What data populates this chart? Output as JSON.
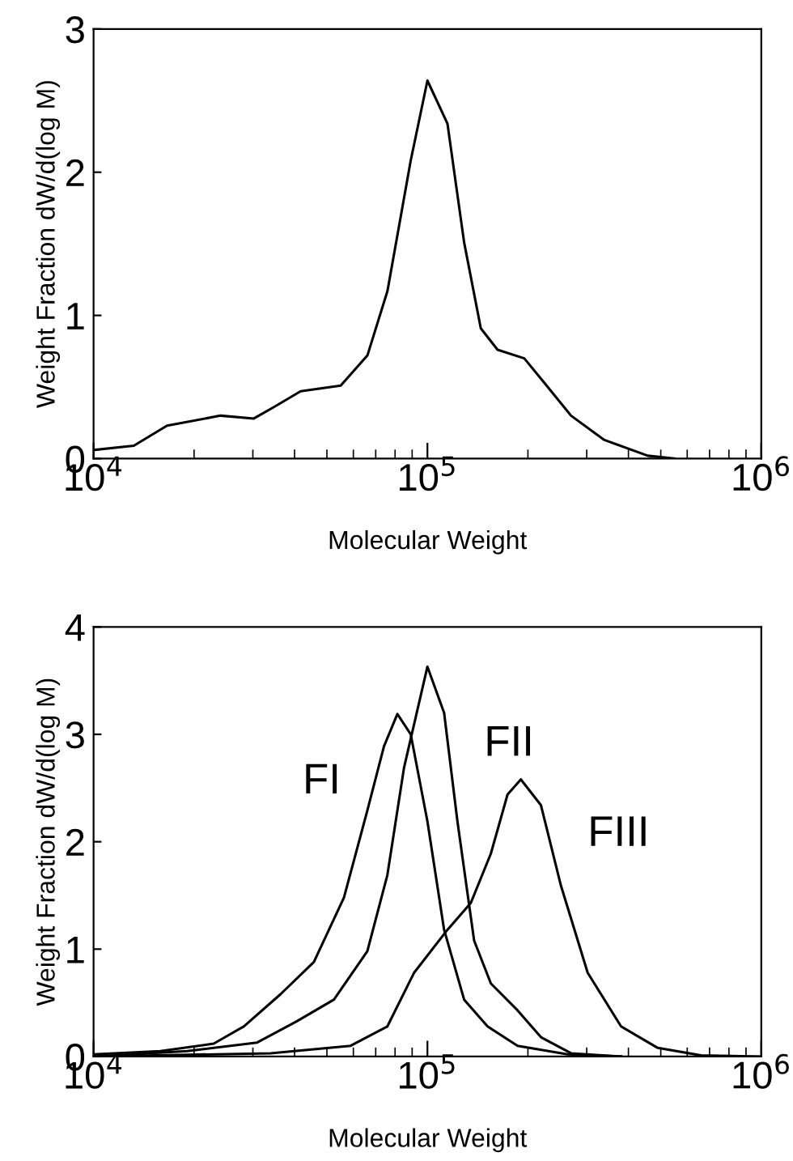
{
  "chart_data": [
    {
      "type": "line",
      "xlabel": "Molecular Weight",
      "ylabel": "Weight Fraction dW/d(log M)",
      "log": "x",
      "xlim": [
        10000,
        1000000
      ],
      "xticks": [
        {
          "value": 10000,
          "label": "10$^{4}$"
        },
        {
          "value": 100000,
          "label": "10$^{5}$"
        },
        {
          "value": 1000000,
          "label": "10$^{6}$"
        }
      ],
      "ylim": [
        0,
        3
      ],
      "yticks": [
        0,
        1,
        2,
        3
      ],
      "grid": false,
      "legend": false,
      "series": [
        {
          "color": "#000000",
          "x": [
            10000,
            13200,
            16600,
            24000,
            30200,
            34700,
            41700,
            55000,
            66100,
            75900,
            89100,
            100000,
            114800,
            128800,
            144500,
            162200,
            195000,
            223900,
            269200,
            338800,
            457100,
            549500
          ],
          "values": [
            0.06,
            0.09,
            0.23,
            0.3,
            0.28,
            0.36,
            0.47,
            0.51,
            0.72,
            1.17,
            2.08,
            2.64,
            2.34,
            1.51,
            0.91,
            0.76,
            0.7,
            0.53,
            0.3,
            0.13,
            0.02,
            0
          ]
        }
      ]
    },
    {
      "type": "line",
      "xlabel": "Molecular Weight",
      "ylabel": "Weight Fraction dW/d(log M)",
      "log": "x",
      "xlim": [
        10000,
        1000000
      ],
      "xticks": [
        {
          "value": 10000,
          "label": "10$^{4}$"
        },
        {
          "value": 100000,
          "label": "10$^{5}$"
        },
        {
          "value": 1000000,
          "label": "10$^{6}$"
        }
      ],
      "ylim": [
        0,
        4
      ],
      "yticks": [
        0,
        1,
        2,
        3,
        4
      ],
      "grid": false,
      "legend": false,
      "series": [
        {
          "name": "FI",
          "color": "#000000",
          "x": [
            10000,
            15850,
            22910,
            28180,
            36310,
            45710,
            56230,
            66070,
            74130,
            81280,
            89130,
            100000,
            112200,
            128800,
            151400,
            186200,
            263000,
            380200
          ],
          "values": [
            0.02,
            0.05,
            0.12,
            0.28,
            0.58,
            0.88,
            1.48,
            2.29,
            2.89,
            3.19,
            3.0,
            2.19,
            1.18,
            0.53,
            0.28,
            0.1,
            0.02,
            0
          ]
        },
        {
          "name": "FII",
          "color": "#000000",
          "x": [
            10000,
            19050,
            30900,
            40740,
            52480,
            66070,
            75860,
            85110,
            100000,
            112200,
            123000,
            138000,
            154900,
            186200,
            218800,
            269200,
            380200
          ],
          "values": [
            0,
            0.05,
            0.13,
            0.33,
            0.53,
            0.98,
            1.69,
            2.69,
            3.63,
            3.2,
            2.19,
            1.08,
            0.68,
            0.43,
            0.18,
            0.03,
            0
          ]
        },
        {
          "name": "FIII",
          "color": "#000000",
          "x": [
            10000,
            33880,
            58880,
            75860,
            91200,
            114800,
            134900,
            154900,
            173800,
            190500,
            218800,
            251200,
            302000,
            380200,
            489800,
            660700,
            1000000
          ],
          "values": [
            0,
            0.03,
            0.1,
            0.28,
            0.78,
            1.18,
            1.43,
            1.89,
            2.44,
            2.58,
            2.34,
            1.59,
            0.78,
            0.28,
            0.08,
            0.01,
            0
          ]
        }
      ]
    }
  ]
}
